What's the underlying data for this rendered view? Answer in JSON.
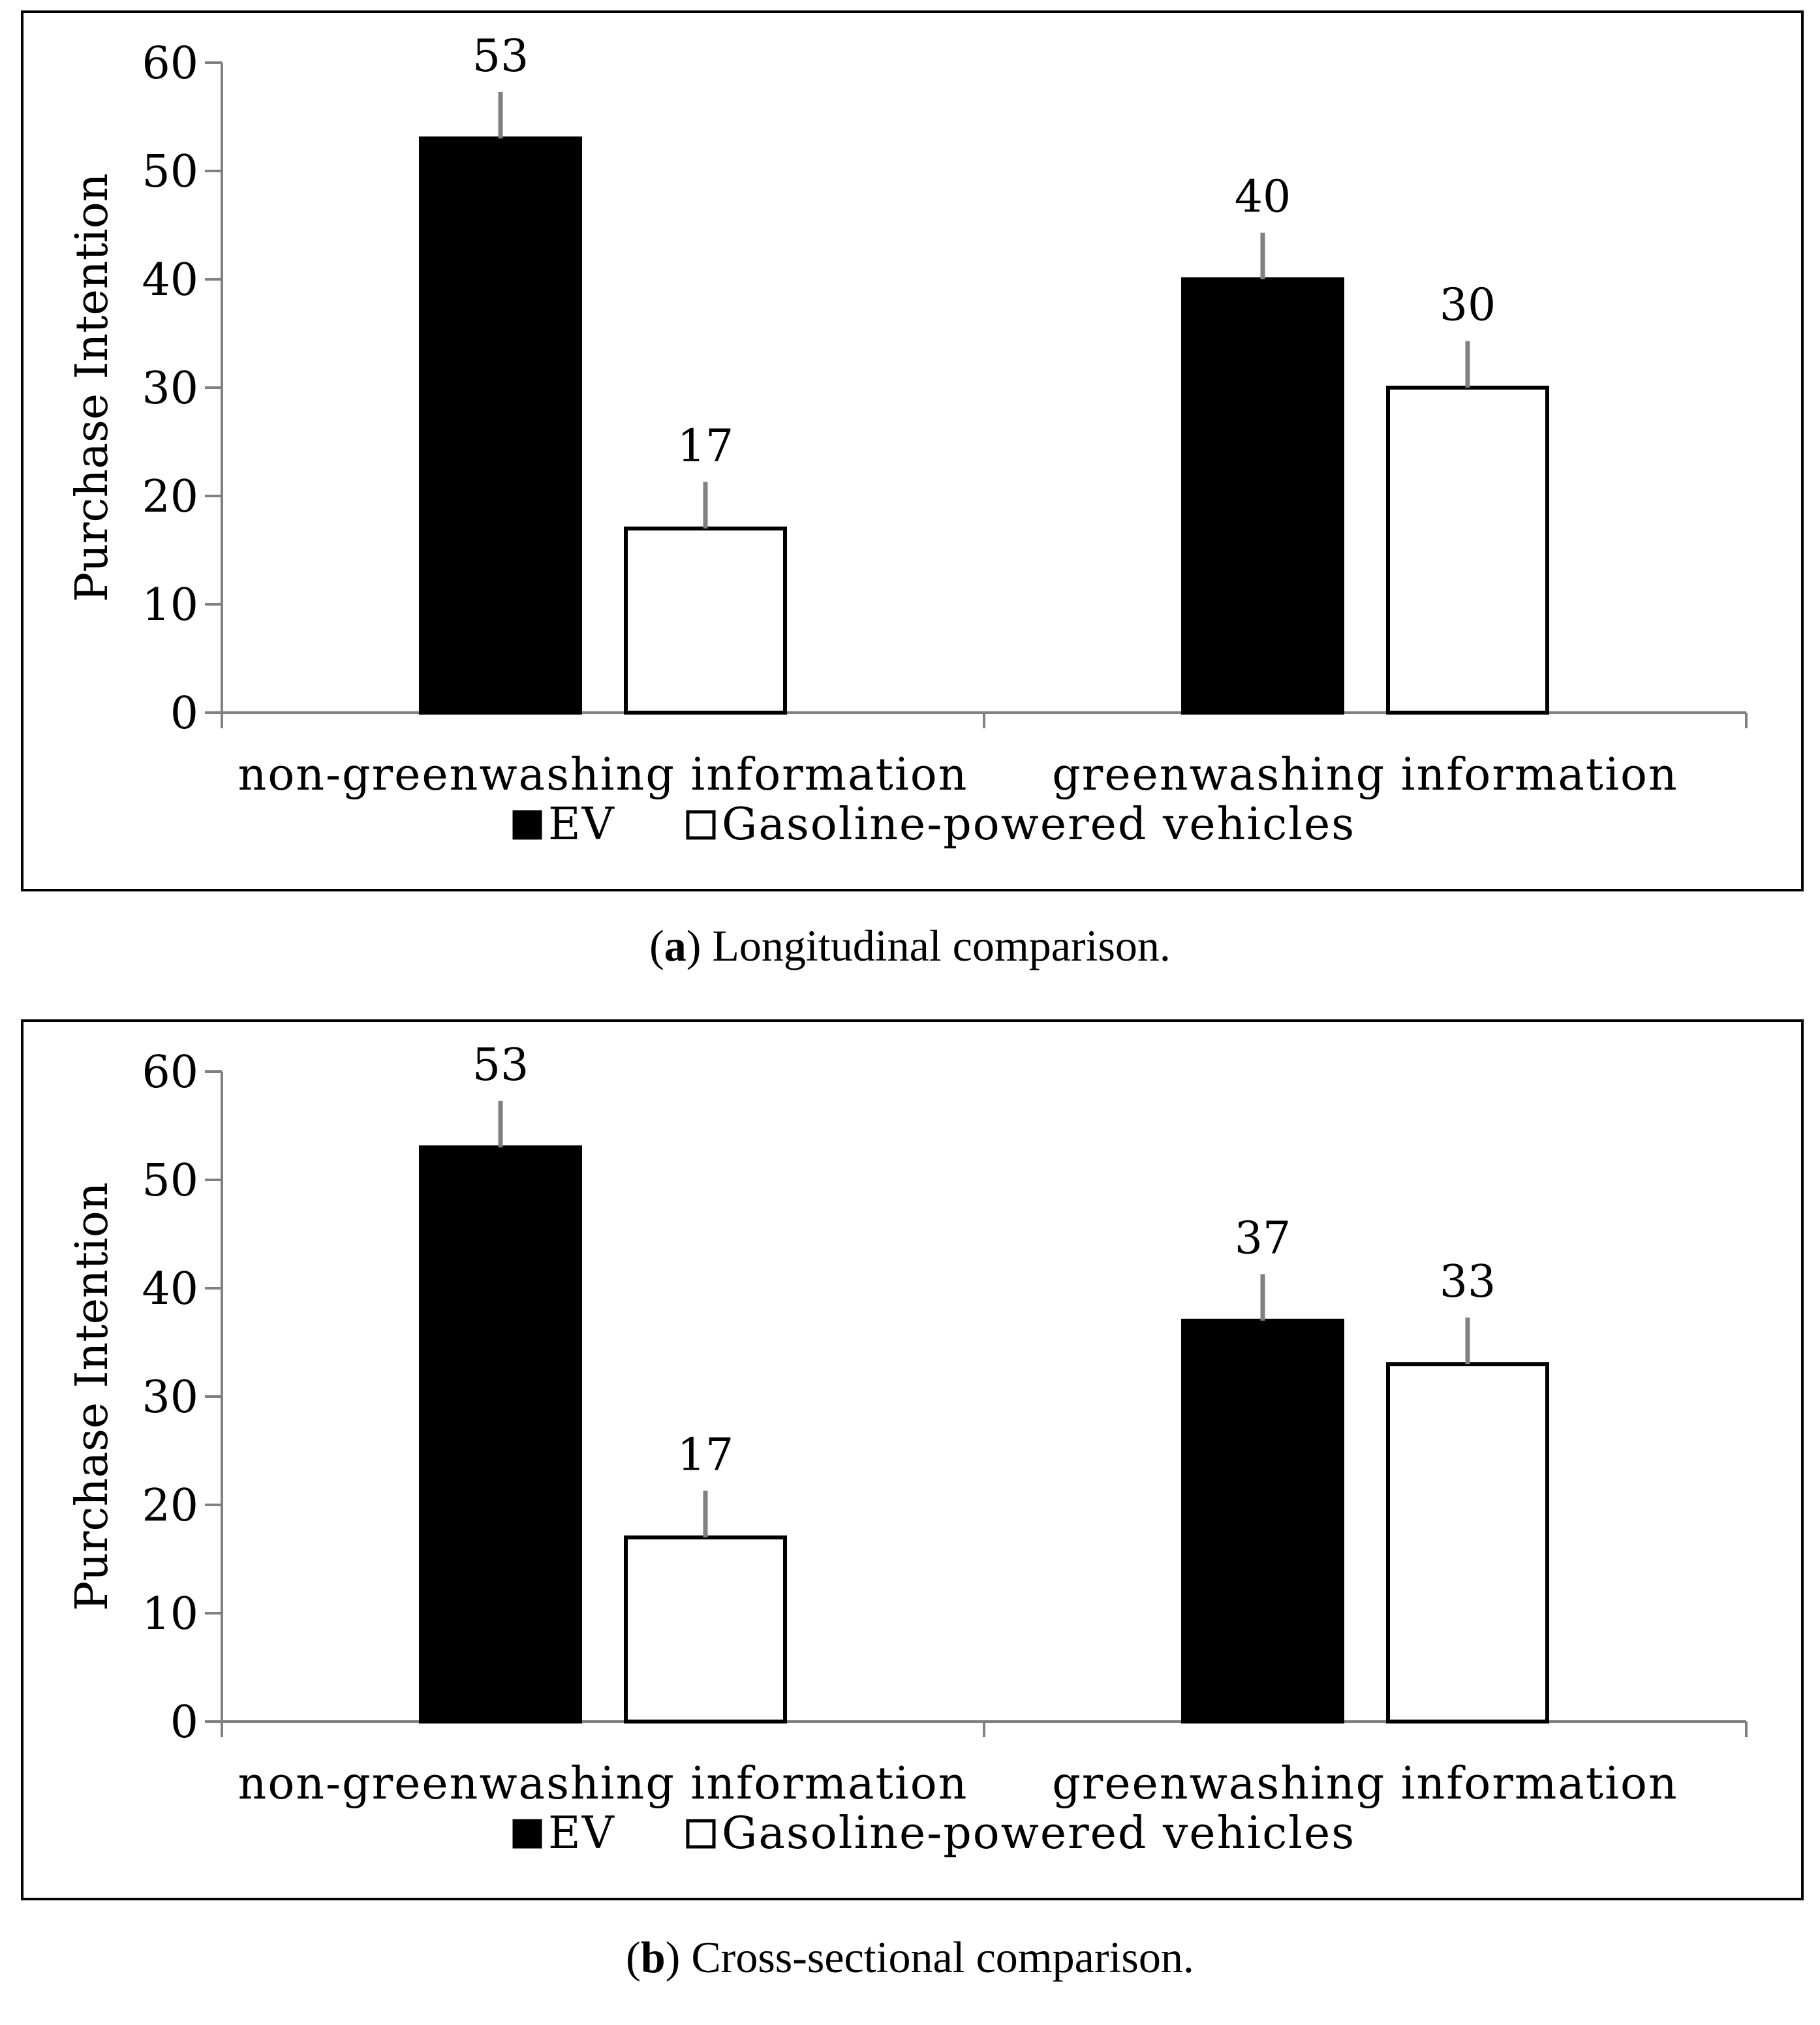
{
  "chart_data": [
    {
      "type": "bar",
      "panel_label": "a",
      "caption": "Longitudinal comparison.",
      "categories": [
        "non-greenwashing information",
        "greenwashing information"
      ],
      "series": [
        {
          "name": "EV",
          "values": [
            53,
            40
          ],
          "color": "#000000"
        },
        {
          "name": "Gasoline-powered vehicles",
          "values": [
            17,
            30
          ],
          "color": "#ffffff"
        }
      ],
      "data_labels": [
        [
          "53",
          "40"
        ],
        [
          "17",
          "30"
        ]
      ],
      "xlabel": "",
      "ylabel": "Purchase Intention",
      "ylim": [
        0,
        60
      ],
      "yticks": [
        0,
        10,
        20,
        30,
        40,
        50,
        60
      ],
      "error_bars": "up",
      "legend": "bottom-center",
      "grid": false
    },
    {
      "type": "bar",
      "panel_label": "b",
      "caption": "Cross-sectional comparison.",
      "categories": [
        "non-greenwashing information",
        "greenwashing information"
      ],
      "series": [
        {
          "name": "EV",
          "values": [
            53,
            37
          ],
          "color": "#000000"
        },
        {
          "name": "Gasoline-powered vehicles",
          "values": [
            17,
            33
          ],
          "color": "#ffffff"
        }
      ],
      "data_labels": [
        [
          "53",
          "37"
        ],
        [
          "17",
          "33"
        ]
      ],
      "xlabel": "",
      "ylabel": "Purchase Intention",
      "ylim": [
        0,
        60
      ],
      "yticks": [
        0,
        10,
        20,
        30,
        40,
        50,
        60
      ],
      "error_bars": "up",
      "legend": "bottom-center",
      "grid": false
    }
  ]
}
